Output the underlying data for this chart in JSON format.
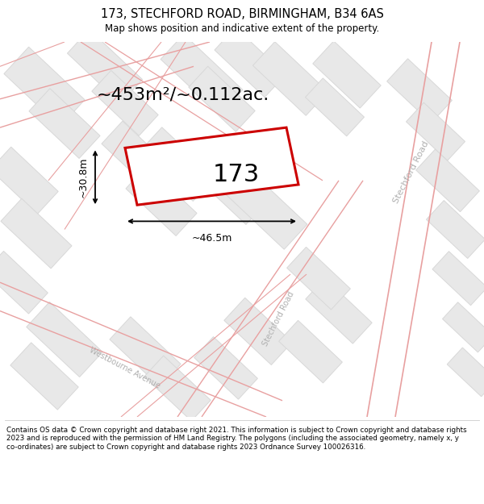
{
  "title_line1": "173, STECHFORD ROAD, BIRMINGHAM, B34 6AS",
  "title_line2": "Map shows position and indicative extent of the property.",
  "footer_text": "Contains OS data © Crown copyright and database right 2021. This information is subject to Crown copyright and database rights 2023 and is reproduced with the permission of HM Land Registry. The polygons (including the associated geometry, namely x, y co-ordinates) are subject to Crown copyright and database rights 2023 Ordnance Survey 100026316.",
  "area_label": "~453m²/~0.112ac.",
  "width_label": "~46.5m",
  "height_label": "~30.8m",
  "plot_number": "173",
  "bg": "#ffffff",
  "map_bg": "#f9f9f9",
  "building_fill": "#e8e8e8",
  "building_edge": "#d8d8d8",
  "road_line_color": "#e8a0a0",
  "plot_stroke": "#cc0000",
  "plot_fill": "#ffffff",
  "road_label_color": "#b0b0b0",
  "dim_color": "#000000",
  "title_color": "#000000",
  "footer_color": "#000000",
  "title_fs": 10.5,
  "subtitle_fs": 8.5,
  "area_fs": 16,
  "plot_num_fs": 22,
  "dim_fs": 9,
  "road_label_fs": 8,
  "footer_fs": 6.3
}
